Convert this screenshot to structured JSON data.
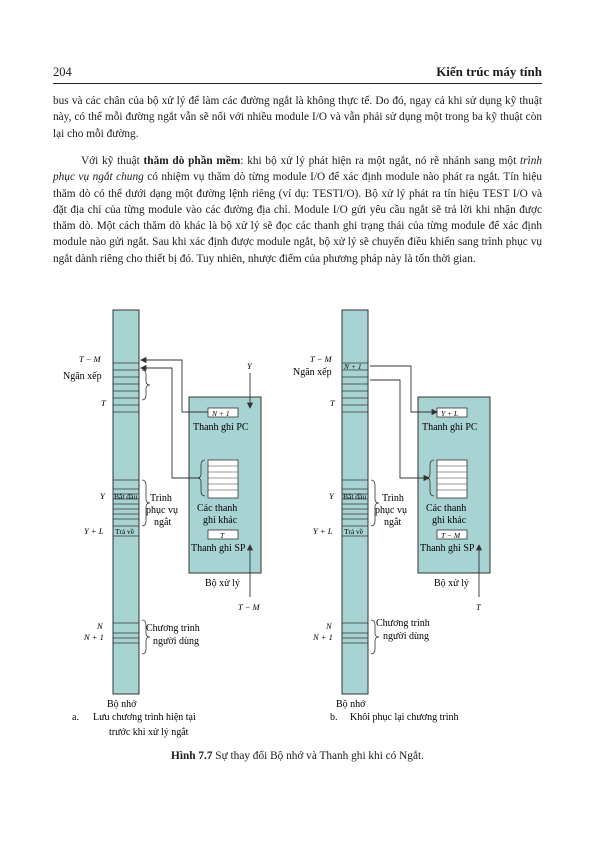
{
  "header": {
    "page_number": "204",
    "book_title": "Kiến trúc máy tính"
  },
  "paragraphs": {
    "p1": "bus và các chân của bộ xử lý để làm các đường ngắt là không thực tế. Do đó, ngay cả khi sử dụng kỹ thuật này, có thể mỗi đường ngắt vẫn sẽ nối với nhiều module I/O và vẫn phải sử dụng một trong ba kỹ thuật còn lại cho mỗi đường.",
    "p2_a": "Với kỹ thuật ",
    "p2_bold": "thăm dò phần mềm",
    "p2_b": ": khi bộ xử lý phát hiện ra một ngắt, nó rẽ nhánh sang một ",
    "p2_italic": "trình phục vụ ngắt chung",
    "p2_c": " có nhiệm vụ thăm dò từng module I/O để xác định module nào phát ra ngắt. Tín hiệu thăm dò có thể dưới dạng một đường lệnh riêng (ví dụ: TESTI/O). Bộ xử lý phát ra tín hiệu TEST I/O và đặt địa chỉ của từng module vào các đường địa chỉ. Module I/O gửi yêu cầu ngắt sẽ trả lời khi nhận được thăm dò. Một cách thăm dò khác là bộ xử lý sẽ đọc các thanh ghi trạng thái của từng module để xác định module nào gửi ngắt. Sau khi xác định được module ngắt, bộ xử lý sẽ chuyển điều khiển sang trình phục vụ ngắt dành riêng cho thiết bị đó. Tuy nhiên, nhược điểm của phương pháp này là tốn thời gian."
  },
  "figure": {
    "colors": {
      "fill": "#a8d3d3",
      "stroke": "#333333"
    },
    "a": {
      "label_TM": "T − M",
      "label_stack": "Ngăn xếp",
      "label_T": "T",
      "label_Y": "Y",
      "label_YL": "Y + L",
      "label_N": "N",
      "label_N1": "N + 1",
      "cell_start": "Bắt đầu",
      "cell_return": "Trả về",
      "isr_line1": "Trình",
      "isr_line2": "phục vụ",
      "isr_line3": "ngắt",
      "user_line1": "Chương trình",
      "user_line2": "người dùng",
      "memory": "Bộ nhớ",
      "pc_value": "N + 1",
      "pc_label": "Thanh ghi PC",
      "regs_line1": "Các thanh",
      "regs_line2": "ghi khác",
      "sp_value": "T",
      "sp_label": "Thanh ghi SP",
      "processor": "Bộ xử lý",
      "arrow_top": "Y",
      "arrow_bottom": "T − M",
      "caption_letter": "a.",
      "caption_line1": "Lưu chương trình hiện tại",
      "caption_line2": "trước khi xử lý ngắt"
    },
    "b": {
      "label_TM": "T − M",
      "label_stack": "Ngăn xếp",
      "label_T": "T",
      "stack_cell": "N + 1",
      "label_Y": "Y",
      "label_YL": "Y + L",
      "label_N": "N",
      "label_N1": "N + 1",
      "cell_start": "Bắt đầu",
      "cell_return": "Trả về",
      "isr_line1": "Trình",
      "isr_line2": "phục vụ",
      "isr_line3": "ngắt",
      "user_line1": "Chương trình",
      "user_line2": "người dùng",
      "memory": "Bộ nhớ",
      "pc_value": "Y + L",
      "pc_label": "Thanh ghi PC",
      "regs_line1": "Các thanh",
      "regs_line2": "ghi khác",
      "sp_value": "T − M",
      "sp_label": "Thanh ghi SP",
      "processor": "Bộ xử lý",
      "arrow_bottom": "T",
      "caption_letter": "b.",
      "caption_line1": "Khôi phục lại chương trình"
    }
  },
  "caption": {
    "bold": "Hình 7.7",
    "text": " Sự thay đổi Bộ nhớ và Thanh ghi khi có Ngắt."
  }
}
